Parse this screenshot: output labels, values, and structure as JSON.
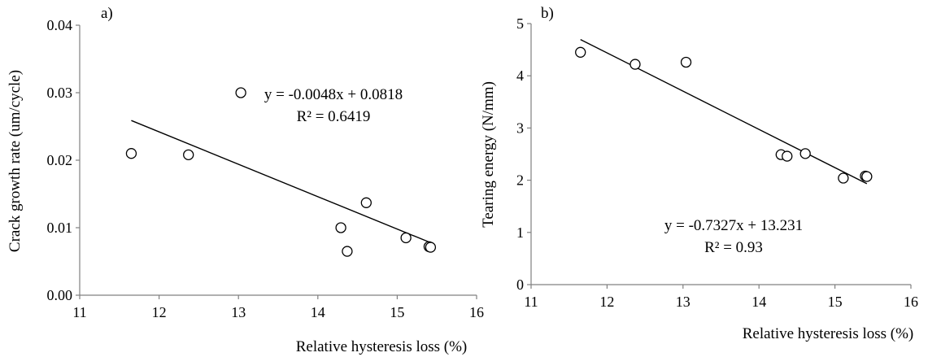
{
  "chart_data": [
    {
      "type": "scatter",
      "panel_label": "a)",
      "title": "",
      "xlabel": "Relative hysteresis loss (%)",
      "ylabel": "Crack growth rate (um/cycle)",
      "xlim": [
        11,
        16
      ],
      "ylim": [
        0,
        0.04
      ],
      "xticks": [
        11,
        12,
        13,
        14,
        15,
        16
      ],
      "yticks": [
        0,
        0.01,
        0.02,
        0.03,
        0.04
      ],
      "xtick_labels": [
        "11",
        "12",
        "13",
        "14",
        "15",
        "16"
      ],
      "ytick_labels": [
        "0.00",
        "0.01",
        "0.02",
        "0.03",
        "0.04"
      ],
      "grid": false,
      "points": [
        {
          "x": 11.65,
          "y": 0.021
        },
        {
          "x": 12.37,
          "y": 0.0208
        },
        {
          "x": 13.03,
          "y": 0.03
        },
        {
          "x": 14.29,
          "y": 0.01
        },
        {
          "x": 14.37,
          "y": 0.0065
        },
        {
          "x": 14.61,
          "y": 0.0137
        },
        {
          "x": 15.11,
          "y": 0.0085
        },
        {
          "x": 15.4,
          "y": 0.0072
        },
        {
          "x": 15.42,
          "y": 0.0071
        }
      ],
      "trendline": {
        "slope": -0.0048,
        "intercept": 0.0818,
        "x_range": [
          11.65,
          15.42
        ]
      },
      "equation": "y = -0.0048x + 0.0818",
      "r_squared": "R² = 0.6419"
    },
    {
      "type": "scatter",
      "panel_label": "b)",
      "title": "",
      "xlabel": "Relative hysteresis loss (%)",
      "ylabel": "Tearing energy (N/mm)",
      "xlim": [
        11,
        16
      ],
      "ylim": [
        0,
        5
      ],
      "xticks": [
        11,
        12,
        13,
        14,
        15,
        16
      ],
      "yticks": [
        0,
        1,
        2,
        3,
        4,
        5
      ],
      "xtick_labels": [
        "11",
        "12",
        "13",
        "14",
        "15",
        "16"
      ],
      "ytick_labels": [
        "0",
        "1",
        "2",
        "3",
        "4",
        "5"
      ],
      "grid": false,
      "points": [
        {
          "x": 11.65,
          "y": 4.45
        },
        {
          "x": 12.37,
          "y": 4.22
        },
        {
          "x": 13.04,
          "y": 4.26
        },
        {
          "x": 14.29,
          "y": 2.49
        },
        {
          "x": 14.37,
          "y": 2.46
        },
        {
          "x": 14.61,
          "y": 2.51
        },
        {
          "x": 15.11,
          "y": 2.04
        },
        {
          "x": 15.4,
          "y": 2.08
        },
        {
          "x": 15.42,
          "y": 2.07
        }
      ],
      "trendline": {
        "slope": -0.7327,
        "intercept": 13.231,
        "x_range": [
          11.65,
          15.42
        ]
      },
      "equation": "y = -0.7327x + 13.231",
      "r_squared": "R² = 0.93"
    }
  ]
}
